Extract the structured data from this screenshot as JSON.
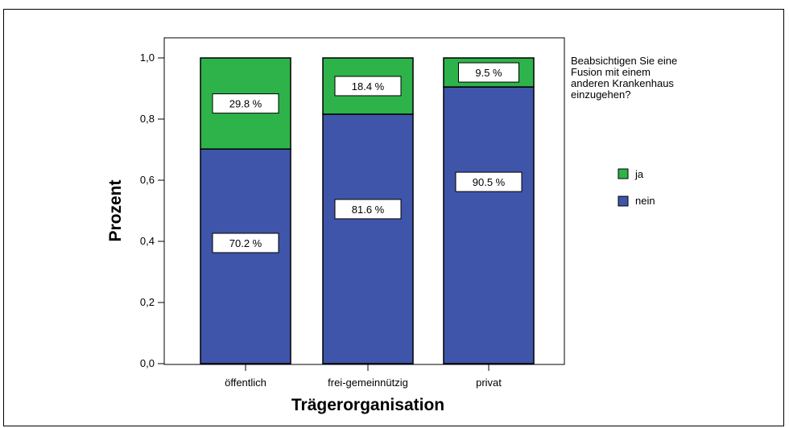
{
  "chart_data": {
    "type": "bar",
    "stacked": true,
    "title": "",
    "xlabel": "Trägerorganisation",
    "ylabel": "Prozent",
    "ylim": [
      0,
      1
    ],
    "y_ticks": [
      "0,0",
      "0,2",
      "0,4",
      "0,6",
      "0,8",
      "1,0"
    ],
    "y_tick_values": [
      0,
      0.2,
      0.4,
      0.6,
      0.8,
      1.0
    ],
    "grid": false,
    "categories": [
      "öffentlich",
      "frei-gemeinnützig",
      "privat"
    ],
    "series": [
      {
        "name": "nein",
        "values": [
          0.702,
          0.816,
          0.905
        ],
        "color": "#3F55A9",
        "labels": [
          "70.2 %",
          "81.6 %",
          "90.5 %"
        ]
      },
      {
        "name": "ja",
        "values": [
          0.298,
          0.184,
          0.095
        ],
        "color": "#2DB34A",
        "labels": [
          "29.8 %",
          "18.4 %",
          "9.5 %"
        ]
      }
    ],
    "legend": {
      "title_lines": [
        "Beabsichtigen Sie eine",
        "Fusion mit einem",
        "anderen Krankenhaus",
        "einzugehen?"
      ],
      "placement": "right",
      "order": [
        "ja",
        "nein"
      ]
    }
  }
}
